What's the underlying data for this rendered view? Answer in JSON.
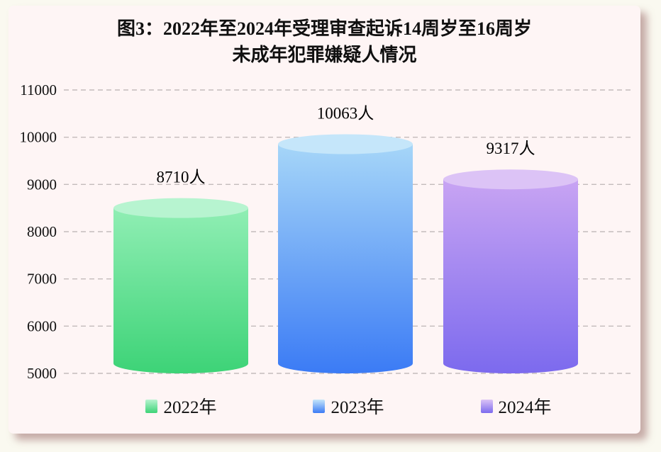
{
  "page": {
    "background_color": "#FAF9F0",
    "card_background_color": "#FEF5F5"
  },
  "chart_data": {
    "type": "bar",
    "variant": "3d-cylinder",
    "title_lines": [
      "图3：2022年至2024年受理审查起诉14周岁至16周岁",
      "未成年犯罪嫌疑人情况"
    ],
    "categories": [
      "2022年",
      "2023年",
      "2024年"
    ],
    "values": [
      8710,
      10063,
      9317
    ],
    "value_labels": [
      "8710人",
      "10063人",
      "9317人"
    ],
    "unit": "人",
    "ylim": [
      5000,
      11000
    ],
    "yticks": [
      5000,
      6000,
      7000,
      8000,
      9000,
      10000,
      11000
    ],
    "grid": "horizontal-dashed",
    "gridline_color": "#c3bbbb",
    "legend_position": "bottom",
    "series_colors": [
      {
        "name": "2022年",
        "cap": "#B7F4D0",
        "body_top": "#90EEB4",
        "body_bottom": "#3DD377"
      },
      {
        "name": "2023年",
        "cap": "#C5E6FA",
        "body_top": "#A6D6F8",
        "body_bottom": "#3B7BF5"
      },
      {
        "name": "2024年",
        "cap": "#DCC3F6",
        "body_top": "#C8A4F3",
        "body_bottom": "#7C6AEE"
      }
    ]
  }
}
